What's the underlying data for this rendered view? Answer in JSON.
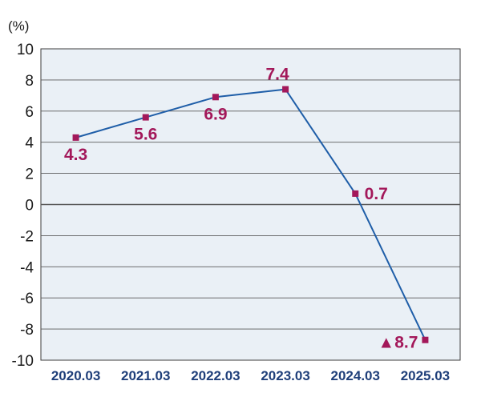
{
  "chart_data": {
    "type": "line",
    "unit_label": "(%)",
    "categories": [
      "2020.03",
      "2021.03",
      "2022.03",
      "2023.03",
      "2024.03",
      "2025.03"
    ],
    "series": [
      {
        "values": [
          4.3,
          5.6,
          6.9,
          7.4,
          0.7,
          -8.7
        ]
      }
    ],
    "data_labels": [
      "4.3",
      "5.6",
      "6.9",
      "7.4",
      "0.7",
      "▲8.7"
    ],
    "yticks": [
      "10",
      "8",
      "6",
      "4",
      "2",
      "0",
      "-2",
      "-4",
      "-6",
      "-8",
      "-10"
    ],
    "ylim": [
      -10,
      10
    ],
    "grid": true,
    "colors": {
      "line": "#1f5ea8",
      "marker": "#a3185a",
      "label": "#a3185a",
      "plot_bg": "#eaf0f6",
      "grid": "#5a5a5a",
      "xtick": "#1f3f7a"
    }
  }
}
